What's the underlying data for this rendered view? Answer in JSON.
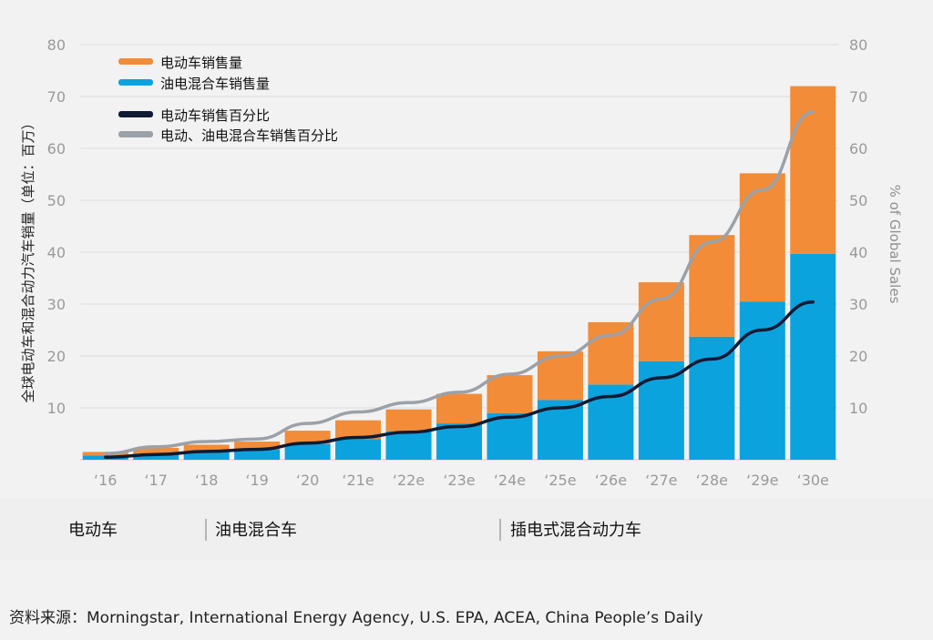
{
  "chart_data": {
    "type": "bar",
    "stacked": true,
    "categories": [
      "‘16",
      "‘17",
      "‘18",
      "‘19",
      "‘20",
      "‘21e",
      "‘22e",
      "‘23e",
      "‘24e",
      "‘25e",
      "‘26e",
      "‘27e",
      "‘28e",
      "‘29e",
      "‘30e"
    ],
    "series": [
      {
        "name": "油电混合车销售量",
        "kind": "bar",
        "axis": "left",
        "color": "#0aa3de",
        "values": [
          0.8,
          1.2,
          1.6,
          2.0,
          3.0,
          4.0,
          5.5,
          7.0,
          9.0,
          11.5,
          14.5,
          19.0,
          23.7,
          30.5,
          39.7
        ]
      },
      {
        "name": "电动车销售量",
        "kind": "bar",
        "axis": "left",
        "color": "#f28c38",
        "values": [
          0.7,
          1.1,
          1.3,
          1.5,
          2.6,
          3.6,
          4.2,
          5.7,
          7.3,
          9.4,
          12.0,
          15.2,
          19.6,
          24.7,
          32.3
        ]
      },
      {
        "name": "电动车销售百分比",
        "kind": "line",
        "axis": "right",
        "color": "#0f1a33",
        "values": [
          0.5,
          1.0,
          1.6,
          2.0,
          3.2,
          4.3,
          5.3,
          6.4,
          8.2,
          10.0,
          12.2,
          15.8,
          19.4,
          25.0,
          30.4
        ]
      },
      {
        "name": "电动、油电混合车销售百分比",
        "kind": "line",
        "axis": "right",
        "color": "#9ba1a8",
        "values": [
          1.2,
          2.5,
          3.5,
          4.0,
          7.0,
          9.2,
          11.0,
          13.0,
          16.5,
          20.0,
          24.0,
          31.0,
          42.0,
          52.0,
          67.0
        ]
      }
    ],
    "ylim": [
      0,
      80
    ],
    "y_ticks": [
      10,
      20,
      30,
      40,
      50,
      60,
      70,
      80
    ],
    "right_ylim": [
      0,
      80
    ],
    "right_ticks": [
      10,
      20,
      30,
      40,
      50,
      60,
      70,
      80
    ],
    "ylabel": "全球电动车和混合动力汽车销量（单位：百万）",
    "ylabel_right": "% of Global Sales",
    "legend_position": "top-left",
    "grid": true
  },
  "categories_band": [
    {
      "label": "电动车"
    },
    {
      "label": "油电混合车"
    },
    {
      "label": "插电式混合动力车"
    }
  ],
  "footer": "资料来源：Morningstar, International Energy Agency, U.S. EPA, ACEA, China People’s Daily"
}
